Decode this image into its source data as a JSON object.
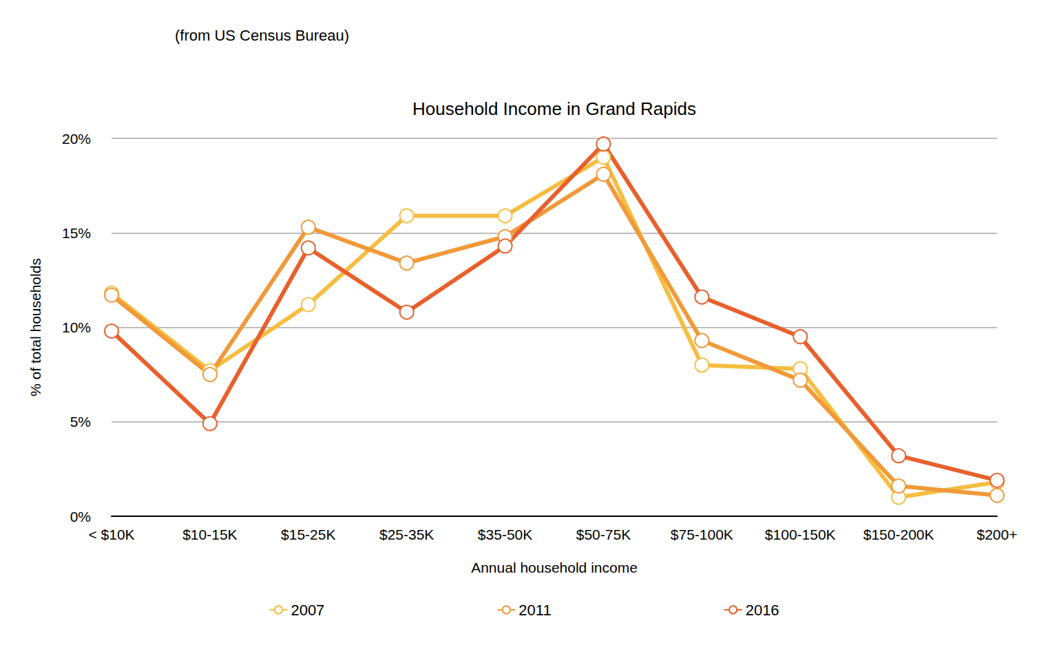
{
  "chart_data": {
    "type": "line",
    "title": "Household Income in Grand Rapids",
    "subtitle": "(from US Census Bureau)",
    "x_label": "Annual household income",
    "y_label": "% of total households",
    "categories": [
      "< $10K",
      "$10-15K",
      "$15-25K",
      "$25-35K",
      "$35-50K",
      "$50-75K",
      "$75-100K",
      "$100-150K",
      "$150-200K",
      "$200+"
    ],
    "series": [
      {
        "name": "2007",
        "color": "#f5be41",
        "values": [
          11.8,
          7.7,
          11.2,
          15.9,
          15.9,
          19.0,
          8.0,
          7.8,
          1.0,
          1.8
        ]
      },
      {
        "name": "2011",
        "color": "#f09a3a",
        "values": [
          11.7,
          7.5,
          15.3,
          13.4,
          14.8,
          18.1,
          9.3,
          7.2,
          1.6,
          1.1
        ]
      },
      {
        "name": "2016",
        "color": "#e8602c",
        "values": [
          9.8,
          4.9,
          14.2,
          10.8,
          14.3,
          19.7,
          11.6,
          9.5,
          3.2,
          1.9
        ]
      }
    ],
    "ylim": [
      0,
      20
    ],
    "yticks": [
      {
        "value": 0,
        "label": "0%"
      },
      {
        "value": 5,
        "label": "5%"
      },
      {
        "value": 10,
        "label": "10%"
      },
      {
        "value": 15,
        "label": "15%"
      },
      {
        "value": 20,
        "label": "20%"
      }
    ],
    "grid": true,
    "legend": "bottom",
    "marker": "circle"
  }
}
